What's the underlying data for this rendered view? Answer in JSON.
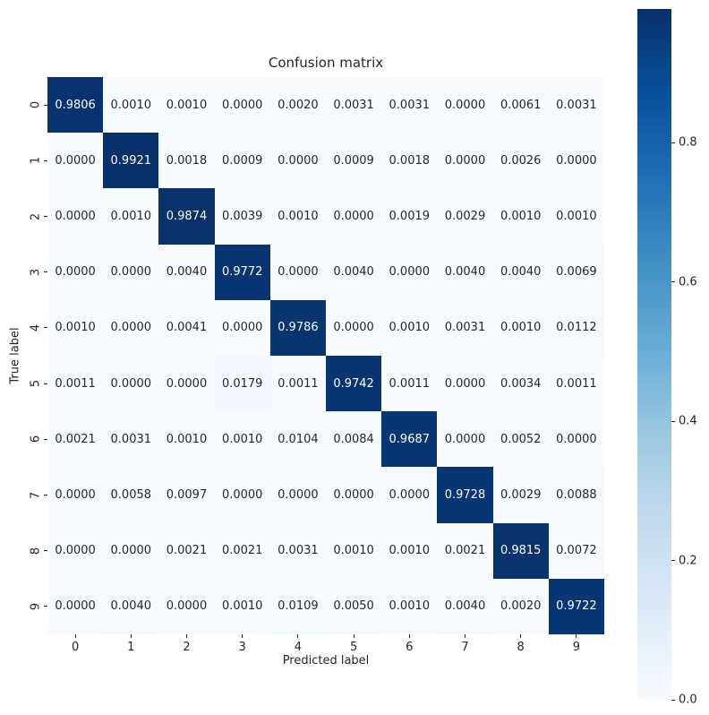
{
  "page": {
    "background": "#ffffff"
  },
  "chart_data": {
    "type": "heatmap",
    "title": "Confusion matrix",
    "xlabel": "Predicted label",
    "ylabel": "True label",
    "row_labels": [
      "0",
      "1",
      "2",
      "3",
      "4",
      "5",
      "6",
      "7",
      "8",
      "9"
    ],
    "col_labels": [
      "0",
      "1",
      "2",
      "3",
      "4",
      "5",
      "6",
      "7",
      "8",
      "9"
    ],
    "matrix": [
      [
        0.9806,
        0.001,
        0.001,
        0.0,
        0.002,
        0.0031,
        0.0031,
        0.0,
        0.0061,
        0.0031
      ],
      [
        0.0,
        0.9921,
        0.0018,
        0.0009,
        0.0,
        0.0009,
        0.0018,
        0.0,
        0.0026,
        0.0
      ],
      [
        0.0,
        0.001,
        0.9874,
        0.0039,
        0.001,
        0.0,
        0.0019,
        0.0029,
        0.001,
        0.001
      ],
      [
        0.0,
        0.0,
        0.004,
        0.9772,
        0.0,
        0.004,
        0.0,
        0.004,
        0.004,
        0.0069
      ],
      [
        0.001,
        0.0,
        0.0041,
        0.0,
        0.9786,
        0.0,
        0.001,
        0.0031,
        0.001,
        0.0112
      ],
      [
        0.0011,
        0.0,
        0.0,
        0.0179,
        0.0011,
        0.9742,
        0.0011,
        0.0,
        0.0034,
        0.0011
      ],
      [
        0.0021,
        0.0031,
        0.001,
        0.001,
        0.0104,
        0.0084,
        0.9687,
        0.0,
        0.0052,
        0.0
      ],
      [
        0.0,
        0.0058,
        0.0097,
        0.0,
        0.0,
        0.0,
        0.0,
        0.9728,
        0.0029,
        0.0088
      ],
      [
        0.0,
        0.0,
        0.0021,
        0.0021,
        0.0031,
        0.001,
        0.001,
        0.0021,
        0.9815,
        0.0072
      ],
      [
        0.0,
        0.004,
        0.0,
        0.001,
        0.0109,
        0.005,
        0.001,
        0.004,
        0.002,
        0.9722
      ]
    ],
    "annotation_decimals": 4,
    "vmin": 0.0,
    "vmax": 0.9921,
    "colormap_name": "Blues",
    "colormap_stops": [
      "#f7fbff",
      "#deebf7",
      "#c6dbef",
      "#9ecae1",
      "#6baed6",
      "#4292c6",
      "#2171b5",
      "#08519c",
      "#08306b"
    ],
    "colorbar_ticks": [
      0.0,
      0.2,
      0.4,
      0.6,
      0.8
    ],
    "colorbar_tick_decimals": 1,
    "annotation_color_dark": "#262626",
    "annotation_color_light": "#ffffff",
    "tick_color": "#262626",
    "grid": false,
    "legend_position": "right-colorbar"
  }
}
